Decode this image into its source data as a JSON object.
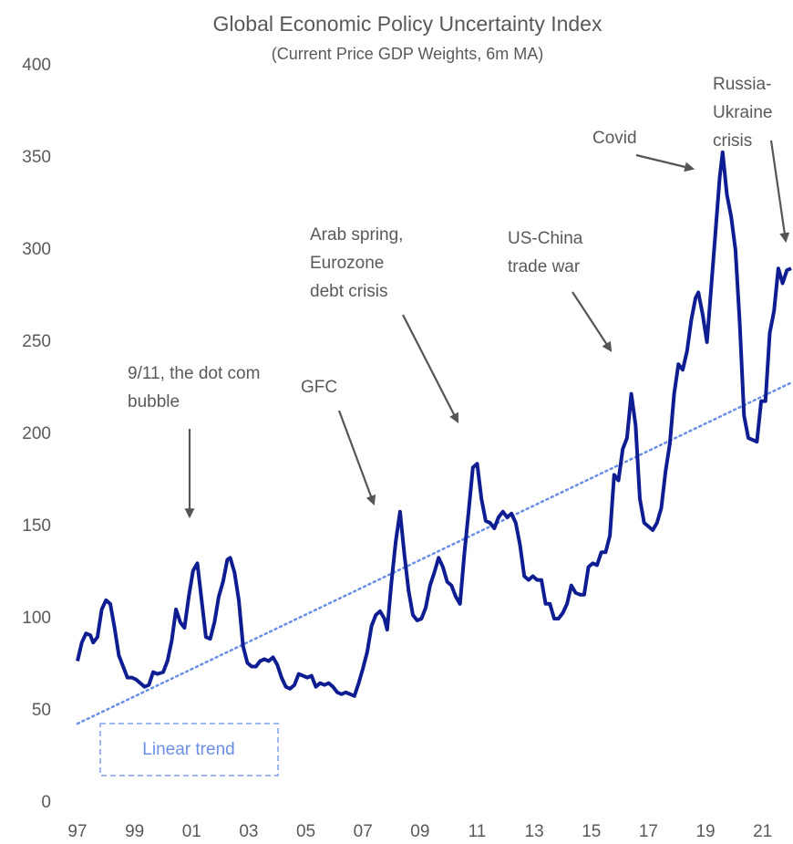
{
  "chart_data": {
    "type": "line",
    "title": "Global Economic Policy Uncertainty Index",
    "subtitle": "(Current Price GDP Weights, 6m MA)",
    "xlim": [
      1997,
      2022
    ],
    "ylim": [
      0,
      400
    ],
    "xticks": [
      {
        "value": 1997,
        "label": "97"
      },
      {
        "value": 1999,
        "label": "99"
      },
      {
        "value": 2001,
        "label": "01"
      },
      {
        "value": 2003,
        "label": "03"
      },
      {
        "value": 2005,
        "label": "05"
      },
      {
        "value": 2007,
        "label": "07"
      },
      {
        "value": 2009,
        "label": "09"
      },
      {
        "value": 2011,
        "label": "11"
      },
      {
        "value": 2013,
        "label": "13"
      },
      {
        "value": 2015,
        "label": "15"
      },
      {
        "value": 2017,
        "label": "17"
      },
      {
        "value": 2019,
        "label": "19"
      },
      {
        "value": 2021,
        "label": "21"
      }
    ],
    "yticks": [
      0,
      50,
      100,
      150,
      200,
      250,
      300,
      350,
      400
    ],
    "grid": false,
    "x": [
      1997.0,
      1997.15,
      1997.3,
      1997.45,
      1997.55,
      1997.7,
      1997.85,
      1998.0,
      1998.15,
      1998.3,
      1998.45,
      1998.6,
      1998.75,
      1998.9,
      1999.05,
      1999.2,
      1999.35,
      1999.5,
      1999.65,
      1999.8,
      2000.0,
      2000.15,
      2000.3,
      2000.45,
      2000.6,
      2000.75,
      2000.9,
      2001.05,
      2001.2,
      2001.35,
      2001.5,
      2001.65,
      2001.8,
      2001.95,
      2002.1,
      2002.25,
      2002.35,
      2002.5,
      2002.65,
      2002.8,
      2002.95,
      2003.1,
      2003.25,
      2003.4,
      2003.55,
      2003.7,
      2003.85,
      2004.0,
      2004.15,
      2004.3,
      2004.45,
      2004.6,
      2004.75,
      2004.9,
      2005.05,
      2005.2,
      2005.35,
      2005.5,
      2005.65,
      2005.8,
      2005.95,
      2006.1,
      2006.25,
      2006.4,
      2006.55,
      2006.7,
      2006.85,
      2007.0,
      2007.15,
      2007.3,
      2007.45,
      2007.6,
      2007.75,
      2007.85,
      2008.0,
      2008.15,
      2008.3,
      2008.45,
      2008.6,
      2008.75,
      2008.9,
      2009.05,
      2009.2,
      2009.35,
      2009.5,
      2009.65,
      2009.8,
      2009.95,
      2010.1,
      2010.25,
      2010.4,
      2010.55,
      2010.7,
      2010.85,
      2011.0,
      2011.15,
      2011.3,
      2011.45,
      2011.6,
      2011.75,
      2011.9,
      2012.05,
      2012.2,
      2012.35,
      2012.5,
      2012.65,
      2012.8,
      2012.95,
      2013.1,
      2013.25,
      2013.4,
      2013.55,
      2013.7,
      2013.85,
      2014.0,
      2014.15,
      2014.3,
      2014.45,
      2014.6,
      2014.75,
      2014.9,
      2015.05,
      2015.2,
      2015.35,
      2015.5,
      2015.65,
      2015.8,
      2015.95,
      2016.1,
      2016.25,
      2016.4,
      2016.55,
      2016.7,
      2016.85,
      2017.0,
      2017.15,
      2017.3,
      2017.45,
      2017.6,
      2017.75,
      2017.9,
      2018.05,
      2018.2,
      2018.35,
      2018.5,
      2018.65,
      2018.75,
      2018.9,
      2019.05,
      2019.2,
      2019.35,
      2019.5,
      2019.6,
      2019.75,
      2019.9,
      2020.05,
      2020.2,
      2020.35,
      2020.5,
      2020.65,
      2020.8,
      2020.95,
      2021.1,
      2021.25,
      2021.4,
      2021.55,
      2021.7,
      2021.85,
      2022.0
    ],
    "series": [
      {
        "color": "#0f1d92",
        "values": [
          77,
          87,
          92,
          91,
          87,
          90,
          105,
          110,
          108,
          95,
          80,
          74,
          68,
          68,
          67,
          65,
          63,
          64,
          71,
          70,
          71,
          77,
          88,
          105,
          98,
          95,
          112,
          126,
          130,
          110,
          90,
          89,
          98,
          112,
          120,
          132,
          133,
          125,
          110,
          85,
          76,
          74,
          74,
          77,
          78,
          77,
          79,
          75,
          68,
          63,
          62,
          64,
          70,
          69,
          68,
          69,
          63,
          65,
          64,
          65,
          63,
          60,
          59,
          60,
          59,
          58,
          65,
          73,
          82,
          96,
          102,
          104,
          100,
          94,
          120,
          142,
          158,
          135,
          115,
          102,
          99,
          100,
          106,
          118,
          125,
          133,
          128,
          120,
          118,
          112,
          108,
          135,
          158,
          182,
          184,
          165,
          153,
          152,
          149,
          155,
          158,
          155,
          157,
          152,
          140,
          123,
          121,
          123,
          121,
          121,
          108,
          108,
          100,
          100,
          103,
          108,
          118,
          114,
          113,
          113,
          128,
          130,
          129,
          136,
          136,
          145,
          178,
          175,
          192,
          198,
          222,
          205,
          165,
          152,
          150,
          148,
          152,
          160,
          180,
          195,
          222,
          238,
          235,
          245,
          262,
          274,
          277,
          265,
          250,
          280,
          310,
          340,
          353,
          330,
          318,
          300,
          260,
          210,
          198,
          197,
          196,
          218,
          218,
          255,
          267,
          290,
          282,
          289,
          290
        ]
      }
    ],
    "trend": {
      "name": "Linear trend",
      "color": "#6b8fe6",
      "x": [
        1997,
        2022
      ],
      "values": [
        43,
        228
      ]
    },
    "annotations": [
      {
        "lines": [
          "9/11, the dot com",
          "bubble"
        ]
      },
      {
        "lines": [
          "GFC"
        ]
      },
      {
        "lines": [
          "Arab spring,",
          "Eurozone",
          "debt crisis"
        ]
      },
      {
        "lines": [
          "US-China",
          "trade war"
        ]
      },
      {
        "lines": [
          "Covid"
        ]
      },
      {
        "lines": [
          "Russia-",
          "Ukraine",
          "crisis"
        ]
      }
    ]
  }
}
